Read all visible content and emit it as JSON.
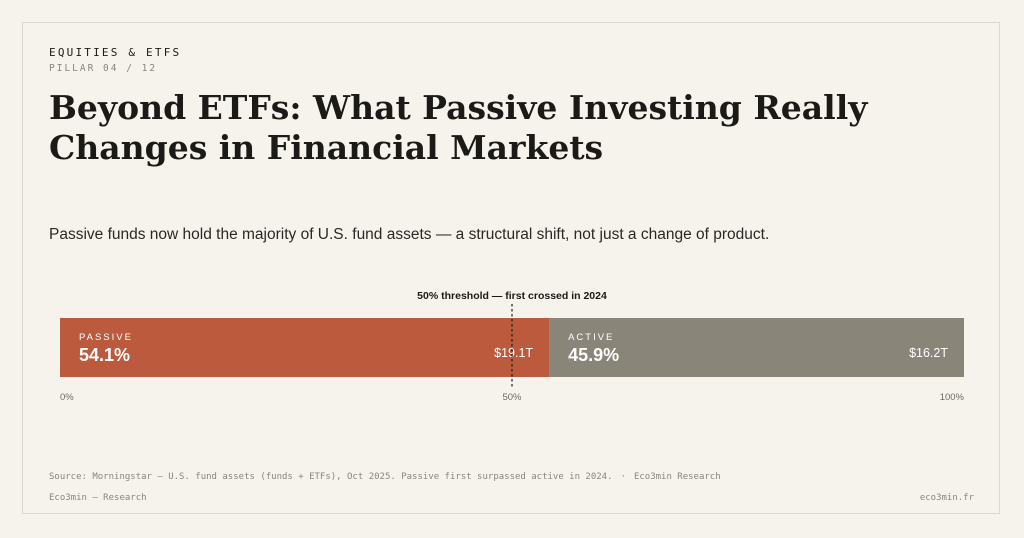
{
  "header": {
    "eyebrow": "EQUITIES & ETFS",
    "pillar": "PILLAR 04 / 12",
    "title": "Beyond ETFs: What Passive Investing Really Changes in Financial Markets",
    "subtitle": "Passive funds now hold the majority of U.S. fund assets — a structural shift, not just a change of product."
  },
  "chart_data": {
    "type": "bar",
    "orientation": "horizontal-stacked",
    "categories": [
      "PASSIVE",
      "ACTIVE"
    ],
    "values": [
      54.1,
      45.9
    ],
    "value_labels": [
      "54.1%",
      "45.9%"
    ],
    "amounts": [
      "$19.1T",
      "$16.2T"
    ],
    "colors": [
      "#bb5a3c",
      "#8a8579"
    ],
    "xlim": [
      0,
      100
    ],
    "x_ticks": [
      {
        "value": 0,
        "label": "0%"
      },
      {
        "value": 50,
        "label": "50%"
      },
      {
        "value": 100,
        "label": "100%"
      }
    ],
    "annotation": {
      "value": 50,
      "label": "50% threshold — first crossed in 2024"
    }
  },
  "footer": {
    "source": "Source: Morningstar — U.S. fund assets (funds + ETFs), Oct 2025. Passive first surpassed active in 2024.",
    "separator": "·",
    "source_org": "Eco3min Research",
    "left": "Eco3min — Research",
    "right": "eco3min.fr"
  }
}
